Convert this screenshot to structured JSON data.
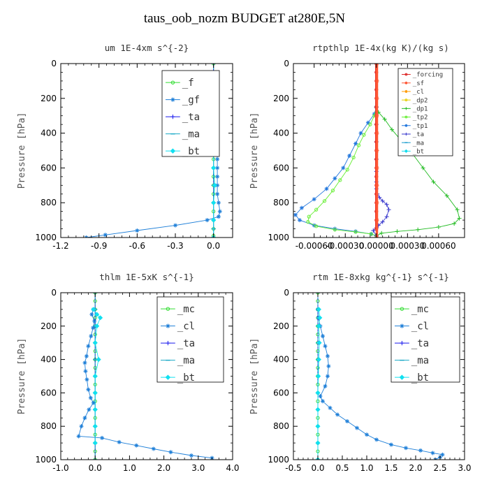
{
  "title": "taus_oob_nozm  BUDGET at280E,5N",
  "colors": {
    "_f": "#33dd33",
    "_gf": "#1e7fd8",
    "_ta": "#1a1aee",
    "_ma": "#17a8c6",
    "_bt": "#11e0f0",
    "_mc": "#33dd33",
    "_cl": "#1e7fd8",
    "_forcing": "#dd2222",
    "_sf": "#ff5533",
    "_cl_rt": "#ff9900",
    "_dp2": "#e6cc00",
    "_dp1": "#22bb22",
    "_tp2": "#66ee33",
    "_tp1": "#2277dd",
    "_ta_rt": "#3333cc",
    "_ma_rt": "#1199cc",
    "_bt_rt": "#11ddee"
  },
  "chart_data": [
    {
      "type": "line",
      "title": "um   1E-4xm  s^{-2}",
      "ylabel": "Pressure [hPa]",
      "xlim": [
        -1.2,
        0.15
      ],
      "ylim": [
        1000,
        0
      ],
      "xticks": [
        "-1.2",
        "-0.9",
        "-0.6",
        "-0.3",
        "0.0"
      ],
      "xtick_values": [
        -1.2,
        -0.9,
        -0.6,
        -0.3,
        0.0
      ],
      "yticks": [
        "0",
        "200",
        "400",
        "600",
        "800",
        "1000"
      ],
      "ytick_values": [
        0,
        200,
        400,
        600,
        800,
        1000
      ],
      "legend": [
        "_f",
        "_gf",
        "_ta",
        "_ma",
        "_bt"
      ],
      "series": [
        {
          "name": "_f",
          "color_key": "_f",
          "x": [
            0,
            0,
            0,
            0,
            0,
            0,
            0,
            0,
            0,
            0,
            0,
            0,
            0,
            0,
            0,
            0,
            0,
            0,
            0,
            0,
            0,
            0
          ],
          "y": [
            0,
            50,
            100,
            150,
            200,
            250,
            300,
            350,
            400,
            450,
            500,
            550,
            600,
            650,
            700,
            750,
            800,
            850,
            900,
            950,
            990,
            1000
          ]
        },
        {
          "name": "_gf",
          "color_key": "_gf",
          "x": [
            0.01,
            0.02,
            0.01,
            0.02,
            0.01,
            0.02,
            0.01,
            0.02,
            0.02,
            0.02,
            0.03,
            0.03,
            0.03,
            0.03,
            0.03,
            0.03,
            0.04,
            0.05,
            0.04,
            -0.05,
            -0.3,
            -0.6,
            -0.85,
            -1.0
          ],
          "y": [
            100,
            130,
            160,
            200,
            240,
            280,
            320,
            360,
            400,
            450,
            500,
            550,
            600,
            650,
            700,
            750,
            800,
            850,
            880,
            900,
            930,
            960,
            985,
            1000
          ]
        },
        {
          "name": "_ta",
          "color_key": "_ta",
          "x": [
            0,
            0,
            0,
            0,
            0,
            0,
            0,
            0,
            0,
            0,
            0,
            0
          ],
          "y": [
            0,
            100,
            200,
            300,
            400,
            500,
            600,
            700,
            800,
            900,
            950,
            1000
          ]
        },
        {
          "name": "_ma",
          "color_key": "_ma",
          "x": [
            0,
            0,
            0,
            0,
            0,
            0,
            0,
            0,
            0,
            0,
            0,
            0
          ],
          "y": [
            0,
            100,
            200,
            300,
            400,
            500,
            600,
            700,
            800,
            900,
            950,
            1000
          ]
        },
        {
          "name": "_bt",
          "color_key": "_bt",
          "x": [
            0.01,
            0.01,
            0.0,
            0.01,
            0.01,
            0.0,
            0.0,
            0.01,
            0.0,
            0.0,
            0.0
          ],
          "y": [
            100,
            150,
            200,
            300,
            400,
            500,
            600,
            700,
            800,
            900,
            1000
          ]
        }
      ]
    },
    {
      "type": "line",
      "title": "rtpthlp   1E-4x(kg K)/(kg s)",
      "ylabel": "Pressure [hPa]",
      "xlim": [
        -0.0008,
        0.00085
      ],
      "ylim": [
        1000,
        0
      ],
      "xticks": [
        "-0.00060",
        "-0.00030",
        "0.00000",
        "0.00030",
        "0.00060"
      ],
      "xtick_values": [
        -0.0006,
        -0.0003,
        0.0,
        0.0003,
        0.0006
      ],
      "yticks": [
        "0",
        "200",
        "400",
        "600",
        "800",
        "1000"
      ],
      "ytick_values": [
        0,
        200,
        400,
        600,
        800,
        1000
      ],
      "legend": [
        "_forcing",
        "_sf",
        "_cl",
        "_dp2",
        "_dp1",
        "_tp2",
        "_tp1",
        "_ta",
        "_ma",
        "_bt"
      ],
      "legend_color_keys": [
        "_forcing",
        "_sf",
        "_cl_rt",
        "_dp2",
        "_dp1",
        "_tp2",
        "_tp1",
        "_ta_rt",
        "_ma_rt",
        "_bt_rt"
      ],
      "series": [
        {
          "name": "_dp1",
          "color_key": "_dp1",
          "x": [
            0,
            2e-05,
            8e-05,
            0.00015,
            0.00025,
            0.00035,
            0.00045,
            0.00055,
            0.00068,
            0.00078,
            0.0008,
            0.00075,
            0.0006,
            0.0004,
            0.0002,
            5e-05,
            0
          ],
          "y": [
            250,
            280,
            320,
            380,
            450,
            520,
            600,
            680,
            760,
            840,
            890,
            920,
            940,
            955,
            965,
            975,
            990
          ]
        },
        {
          "name": "_tp1",
          "color_key": "_tp1",
          "x": [
            0,
            -2e-05,
            -8e-05,
            -0.00015,
            -0.0002,
            -0.00026,
            -0.00032,
            -0.0004,
            -0.00048,
            -0.0006,
            -0.00072,
            -0.00078,
            -0.00074,
            -0.0006,
            -0.0004,
            -0.0002,
            -5e-05,
            0
          ],
          "y": [
            250,
            290,
            340,
            400,
            460,
            530,
            600,
            660,
            720,
            780,
            830,
            870,
            900,
            930,
            950,
            965,
            980,
            990
          ]
        },
        {
          "name": "_tp2",
          "color_key": "_tp2",
          "x": [
            0,
            -2e-05,
            -6e-05,
            -0.00012,
            -0.00017,
            -0.00022,
            -0.00028,
            -0.00035,
            -0.00042,
            -0.0005,
            -0.00058,
            -0.00065,
            -0.00066,
            -0.00058,
            -0.0004,
            -0.0002,
            -5e-05,
            0
          ],
          "y": [
            250,
            300,
            350,
            410,
            470,
            540,
            610,
            670,
            730,
            790,
            840,
            880,
            910,
            935,
            955,
            968,
            980,
            990
          ]
        },
        {
          "name": "_ta",
          "color_key": "_ta_rt",
          "x": [
            0,
            0,
            0,
            0,
            0,
            0,
            0,
            1e-05,
            3e-05,
            6e-05,
            0.0001,
            0.00012,
            0.0001,
            6e-05,
            2e-05,
            0,
            -3e-05,
            0
          ],
          "y": [
            250,
            350,
            450,
            550,
            620,
            680,
            720,
            750,
            770,
            790,
            810,
            840,
            880,
            910,
            930,
            945,
            960,
            990
          ]
        },
        {
          "name": "_forcing",
          "color_key": "_forcing",
          "x": [
            0,
            0,
            0,
            0,
            0,
            0,
            0,
            0,
            0,
            0,
            0,
            0,
            0,
            0,
            0,
            0,
            0,
            0,
            0,
            0
          ],
          "y": [
            0,
            50,
            100,
            150,
            200,
            250,
            300,
            350,
            400,
            450,
            500,
            550,
            600,
            650,
            700,
            750,
            800,
            850,
            900,
            950
          ]
        },
        {
          "name": "_sf",
          "color_key": "_sf",
          "x": [
            5e-06,
            5e-06,
            5e-06,
            5e-06,
            5e-06,
            5e-06,
            5e-06,
            5e-06,
            5e-06,
            5e-06,
            5e-06
          ],
          "y": [
            0,
            100,
            200,
            300,
            400,
            500,
            600,
            700,
            800,
            900,
            1000
          ]
        }
      ]
    },
    {
      "type": "line",
      "title": "thlm   1E-5xK  s^{-1}",
      "ylabel": "Pressure [hPa]",
      "xlim": [
        -1.0,
        4.0
      ],
      "ylim": [
        1000,
        0
      ],
      "xticks": [
        "-1.0",
        "0.0",
        "1.0",
        "2.0",
        "3.0",
        "4.0"
      ],
      "xtick_values": [
        -1,
        0,
        1,
        2,
        3,
        4
      ],
      "yticks": [
        "0",
        "200",
        "400",
        "600",
        "800",
        "1000"
      ],
      "ytick_values": [
        0,
        200,
        400,
        600,
        800,
        1000
      ],
      "legend": [
        "_mc",
        "_cl",
        "_ta",
        "_ma",
        "_bt"
      ],
      "series": [
        {
          "name": "_mc",
          "color_key": "_mc",
          "x": [
            0,
            0,
            0,
            0,
            0,
            0,
            0,
            0,
            0,
            0,
            0,
            0,
            0,
            0,
            0,
            0,
            0,
            0,
            0,
            0,
            0
          ],
          "y": [
            0,
            50,
            100,
            150,
            200,
            250,
            300,
            350,
            400,
            450,
            500,
            550,
            600,
            650,
            700,
            750,
            800,
            850,
            900,
            950,
            1000
          ]
        },
        {
          "name": "_cl",
          "color_key": "_cl",
          "x": [
            -0.05,
            -0.1,
            -0.02,
            -0.06,
            -0.12,
            -0.2,
            -0.25,
            -0.3,
            -0.28,
            -0.24,
            -0.2,
            -0.13,
            -0.05,
            -0.18,
            -0.3,
            -0.4,
            -0.48,
            0.2,
            0.7,
            1.2,
            1.7,
            2.2,
            2.8,
            3.4
          ],
          "y": [
            100,
            130,
            170,
            210,
            260,
            320,
            380,
            420,
            470,
            520,
            580,
            630,
            660,
            700,
            750,
            800,
            860,
            870,
            895,
            915,
            935,
            955,
            975,
            990
          ]
        },
        {
          "name": "_ta",
          "color_key": "_ta",
          "x": [
            0,
            0,
            0,
            0,
            0,
            0,
            0,
            0,
            0,
            0,
            0
          ],
          "y": [
            0,
            100,
            200,
            300,
            400,
            500,
            600,
            700,
            800,
            900,
            1000
          ]
        },
        {
          "name": "_ma",
          "color_key": "_ma",
          "x": [
            0,
            0,
            0,
            0,
            0,
            0,
            0,
            0,
            0,
            0,
            0
          ],
          "y": [
            0,
            100,
            200,
            300,
            400,
            500,
            600,
            700,
            800,
            900,
            1000
          ]
        },
        {
          "name": "_bt",
          "color_key": "_bt",
          "x": [
            -0.05,
            0.05,
            0.15,
            0.05,
            0.0,
            0.1,
            0.0,
            0.0,
            0.0,
            0.0,
            0.0
          ],
          "y": [
            100,
            130,
            150,
            200,
            300,
            400,
            500,
            600,
            700,
            800,
            900
          ]
        }
      ]
    },
    {
      "type": "line",
      "title": "rtm   1E-8xkg  kg^{-1}  s^{-1}",
      "ylabel": "Pressure [hPa]",
      "xlim": [
        -0.5,
        3.0
      ],
      "ylim": [
        1000,
        0
      ],
      "xticks": [
        "-0.5",
        "0.0",
        "0.5",
        "1.0",
        "1.5",
        "2.0",
        "2.5",
        "3.0"
      ],
      "xtick_values": [
        -0.5,
        0,
        0.5,
        1,
        1.5,
        2,
        2.5,
        3
      ],
      "yticks": [
        "0",
        "200",
        "400",
        "600",
        "800",
        "1000"
      ],
      "ytick_values": [
        0,
        200,
        400,
        600,
        800,
        1000
      ],
      "legend": [
        "_mc",
        "_cl",
        "_ta",
        "_ma",
        "_bt"
      ],
      "series": [
        {
          "name": "_mc",
          "color_key": "_mc",
          "x": [
            0,
            0,
            0,
            0,
            0,
            0,
            0,
            0,
            0,
            0,
            0,
            0,
            0,
            0,
            0,
            0,
            0,
            0,
            0,
            0,
            0
          ],
          "y": [
            0,
            50,
            100,
            150,
            200,
            250,
            300,
            350,
            400,
            450,
            500,
            550,
            600,
            650,
            700,
            750,
            800,
            850,
            900,
            950,
            1000
          ]
        },
        {
          "name": "_cl",
          "color_key": "_cl",
          "x": [
            0,
            0.01,
            0.05,
            0.1,
            0.15,
            0.2,
            0.22,
            0.2,
            0.15,
            0.05,
            0.1,
            0.25,
            0.4,
            0.6,
            0.8,
            1.0,
            1.2,
            1.5,
            1.8,
            2.1,
            2.35,
            2.55,
            2.5,
            2.4
          ],
          "y": [
            100,
            150,
            200,
            260,
            320,
            380,
            440,
            500,
            560,
            620,
            650,
            690,
            730,
            770,
            810,
            850,
            880,
            910,
            930,
            945,
            960,
            970,
            985,
            1000
          ]
        },
        {
          "name": "_ta",
          "color_key": "_ta",
          "x": [
            0,
            0,
            0,
            0,
            0,
            0,
            0,
            0,
            0,
            0,
            0
          ],
          "y": [
            0,
            100,
            200,
            300,
            400,
            500,
            600,
            700,
            800,
            900,
            1000
          ]
        },
        {
          "name": "_ma",
          "color_key": "_ma",
          "x": [
            0,
            0,
            0,
            0,
            0,
            0,
            0,
            0,
            0,
            0,
            0
          ],
          "y": [
            0,
            100,
            200,
            300,
            400,
            500,
            600,
            700,
            800,
            900,
            1000
          ]
        },
        {
          "name": "_bt",
          "color_key": "_bt",
          "x": [
            0.02,
            0.04,
            0.02,
            0.03,
            0.02,
            0.01,
            0.0,
            0.0,
            0.0,
            0.0,
            0.0
          ],
          "y": [
            100,
            150,
            200,
            300,
            400,
            500,
            600,
            700,
            800,
            900,
            1000
          ]
        }
      ]
    }
  ]
}
